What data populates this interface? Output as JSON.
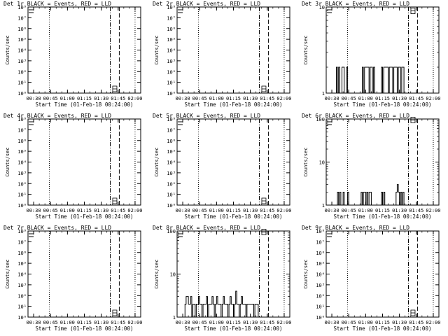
{
  "chart_data": [
    {
      "type": "line",
      "title": "Det 1r BLACK = Events, RED = LLD",
      "xlabel": "Start Time (01-Feb-18 00:24:00)",
      "ylabel": "Counts/sec",
      "yscale": "log",
      "ylim": [
        1,
        100000000
      ],
      "y_ticks": [
        1,
        10,
        100,
        1000,
        10000,
        100000,
        1000000,
        10000000,
        100000000
      ],
      "y_tick_labels": [
        "10⁰",
        "10¹",
        "10²",
        "10³",
        "10⁴",
        "10⁵",
        "10⁶",
        "10⁷",
        "10⁸"
      ],
      "xlim": [
        25,
        125
      ],
      "x_ticks": [
        30,
        45,
        60,
        75,
        90,
        105,
        120
      ],
      "x_tick_labels": [
        "00:30",
        "00:45",
        "01:00",
        "01:15",
        "01:30",
        "01:45",
        "02:00"
      ],
      "dotted_lines": [
        44,
        120
      ],
      "dashdot_lines": [
        98
      ],
      "dashed_lines": [
        106
      ],
      "series": [
        {
          "x": [],
          "y": []
        }
      ],
      "markers": [
        {
          "x": [
            102
          ],
          "y": [
            1.4
          ]
        }
      ]
    },
    {
      "type": "line",
      "title": "Det 2r BLACK = Events, RED = LLD",
      "xlabel": "Start Time (01-Feb-18 00:24:00)",
      "ylabel": "Counts/sec",
      "yscale": "log",
      "ylim": [
        1,
        100000000
      ],
      "y_ticks": [
        1,
        10,
        100,
        1000,
        10000,
        100000,
        1000000,
        10000000,
        100000000
      ],
      "y_tick_labels": [
        "10⁰",
        "10¹",
        "10²",
        "10³",
        "10⁴",
        "10⁵",
        "10⁶",
        "10⁷",
        "10⁸"
      ],
      "xlim": [
        25,
        125
      ],
      "x_ticks": [
        30,
        45,
        60,
        75,
        90,
        105,
        120
      ],
      "x_tick_labels": [
        "00:30",
        "00:45",
        "01:00",
        "01:15",
        "01:30",
        "01:45",
        "02:00"
      ],
      "dotted_lines": [
        44,
        120
      ],
      "dashdot_lines": [
        98
      ],
      "dashed_lines": [
        106
      ],
      "series": [
        {
          "x": [],
          "y": []
        }
      ],
      "markers": [
        {
          "x": [
            102
          ],
          "y": [
            1.4
          ]
        }
      ]
    },
    {
      "type": "line",
      "title": "Det 3r BLACK = Events, RED = LLD",
      "xlabel": "Start Time (01-Feb-18 00:24:00)",
      "ylabel": "Counts/sec",
      "yscale": "log",
      "ylim": [
        1,
        10
      ],
      "y_ticks": [
        1,
        10
      ],
      "y_tick_labels": [
        "1",
        "10"
      ],
      "xlim": [
        25,
        125
      ],
      "x_ticks": [
        30,
        45,
        60,
        75,
        90,
        105,
        120
      ],
      "x_tick_labels": [
        "00:30",
        "00:45",
        "01:00",
        "01:15",
        "01:30",
        "01:45",
        "02:00"
      ],
      "dotted_lines": [
        44,
        120
      ],
      "dashdot_lines": [
        98
      ],
      "dashed_lines": [
        106
      ],
      "series": [
        {
          "x": [
            32,
            33,
            34,
            35,
            36,
            37,
            38,
            39,
            40,
            41,
            42,
            43,
            44,
            45,
            46,
            47,
            48,
            49,
            50,
            51,
            52,
            53,
            54,
            55,
            56,
            57,
            58,
            59,
            60,
            61,
            62,
            63,
            64,
            65,
            66,
            67,
            68,
            69,
            70,
            71,
            72,
            73,
            74,
            75,
            76,
            77,
            78,
            79,
            80,
            81,
            82,
            83,
            84,
            85,
            86,
            87,
            88,
            89,
            90,
            91,
            92,
            93,
            94,
            95,
            96
          ],
          "y": [
            1,
            1,
            2,
            1,
            2,
            1,
            1,
            2,
            2,
            1,
            1,
            2,
            1,
            1,
            1,
            1,
            1,
            1,
            1,
            1,
            1,
            1,
            1,
            1,
            1,
            2,
            1,
            2,
            2,
            2,
            2,
            1,
            2,
            2,
            1,
            2,
            1,
            1,
            1,
            1,
            1,
            1,
            2,
            1,
            2,
            2,
            2,
            2,
            1,
            2,
            2,
            2,
            1,
            2,
            2,
            2,
            1,
            2,
            2,
            1,
            2,
            2,
            1,
            1,
            1
          ]
        }
      ],
      "markers": [
        {
          "x": [
            102
          ],
          "y": [
            9
          ]
        }
      ]
    },
    {
      "type": "line",
      "title": "Det 4r BLACK = Events, RED = LLD",
      "xlabel": "Start Time (01-Feb-18 00:24:00)",
      "ylabel": "Counts/sec",
      "yscale": "log",
      "ylim": [
        1,
        100000000
      ],
      "y_ticks": [
        1,
        10,
        100,
        1000,
        10000,
        100000,
        1000000,
        10000000,
        100000000
      ],
      "y_tick_labels": [
        "10⁰",
        "10¹",
        "10²",
        "10³",
        "10⁴",
        "10⁵",
        "10⁶",
        "10⁷",
        "10⁸"
      ],
      "xlim": [
        25,
        125
      ],
      "x_ticks": [
        30,
        45,
        60,
        75,
        90,
        105,
        120
      ],
      "x_tick_labels": [
        "00:30",
        "00:45",
        "01:00",
        "01:15",
        "01:30",
        "01:45",
        "02:00"
      ],
      "dotted_lines": [
        44,
        120
      ],
      "dashdot_lines": [
        98
      ],
      "dashed_lines": [
        106
      ],
      "series": [
        {
          "x": [],
          "y": []
        }
      ],
      "markers": [
        {
          "x": [
            102
          ],
          "y": [
            1.4
          ]
        }
      ]
    },
    {
      "type": "line",
      "title": "Det 5r BLACK = Events, RED = LLD",
      "xlabel": "Start Time (01-Feb-18 00:24:00)",
      "ylabel": "Counts/sec",
      "yscale": "log",
      "ylim": [
        1,
        100000000
      ],
      "y_ticks": [
        1,
        10,
        100,
        1000,
        10000,
        100000,
        1000000,
        10000000,
        100000000
      ],
      "y_tick_labels": [
        "10⁰",
        "10¹",
        "10²",
        "10³",
        "10⁴",
        "10⁵",
        "10⁶",
        "10⁷",
        "10⁸"
      ],
      "xlim": [
        25,
        125
      ],
      "x_ticks": [
        30,
        45,
        60,
        75,
        90,
        105,
        120
      ],
      "x_tick_labels": [
        "00:30",
        "00:45",
        "01:00",
        "01:15",
        "01:30",
        "01:45",
        "02:00"
      ],
      "dotted_lines": [
        44,
        120
      ],
      "dashdot_lines": [
        98
      ],
      "dashed_lines": [
        106
      ],
      "series": [
        {
          "x": [],
          "y": []
        }
      ],
      "markers": [
        {
          "x": [
            102
          ],
          "y": [
            1.4
          ]
        }
      ]
    },
    {
      "type": "line",
      "title": "Det 6r BLACK = Events, RED = LLD",
      "xlabel": "Start Time (01-Feb-18 00:24:00)",
      "ylabel": "Counts/sec",
      "yscale": "log",
      "ylim": [
        1,
        100
      ],
      "y_ticks": [
        1,
        10,
        100
      ],
      "y_tick_labels": [
        "1",
        "10",
        "100"
      ],
      "xlim": [
        25,
        125
      ],
      "x_ticks": [
        30,
        45,
        60,
        75,
        90,
        105,
        120
      ],
      "x_tick_labels": [
        "00:30",
        "00:45",
        "01:00",
        "01:15",
        "01:30",
        "01:45",
        "02:00"
      ],
      "dotted_lines": [
        44,
        120
      ],
      "dashdot_lines": [
        98
      ],
      "dashed_lines": [
        106
      ],
      "series": [
        {
          "x": [
            34,
            35,
            36,
            37,
            38,
            39,
            40,
            41,
            42,
            43,
            44,
            45,
            46,
            47,
            48,
            49,
            50,
            51,
            52,
            53,
            54,
            55,
            56,
            57,
            58,
            59,
            60,
            61,
            62,
            63,
            64,
            65,
            66,
            67,
            68,
            69,
            70,
            71,
            72,
            73,
            74,
            75,
            76,
            77,
            78,
            79,
            80,
            81,
            82,
            83,
            84,
            85,
            86,
            87,
            88,
            89,
            90,
            91,
            92,
            93,
            94,
            95,
            96
          ],
          "y": [
            1,
            2,
            1,
            2,
            1,
            1,
            2,
            1,
            1,
            1,
            2,
            1,
            1,
            1,
            1,
            1,
            1,
            1,
            1,
            1,
            1,
            1,
            2,
            1,
            2,
            2,
            1,
            2,
            1,
            2,
            2,
            1,
            1,
            1,
            1,
            1,
            1,
            1,
            1,
            1,
            2,
            1,
            2,
            1,
            1,
            1,
            1,
            1,
            1,
            1,
            1,
            1,
            1,
            2,
            3,
            2,
            1,
            2,
            1,
            2,
            1,
            1,
            1
          ]
        }
      ],
      "markers": [
        {
          "x": [
            102
          ],
          "y": [
            95
          ]
        }
      ]
    },
    {
      "type": "line",
      "title": "Det 7r BLACK = Events, RED = LLD",
      "xlabel": "Start Time (01-Feb-18 00:24:00)",
      "ylabel": "Counts/sec",
      "yscale": "log",
      "ylim": [
        1,
        100000000
      ],
      "y_ticks": [
        1,
        10,
        100,
        1000,
        10000,
        100000,
        1000000,
        10000000,
        100000000
      ],
      "y_tick_labels": [
        "10⁰",
        "10¹",
        "10²",
        "10³",
        "10⁴",
        "10⁵",
        "10⁶",
        "10⁷",
        "10⁸"
      ],
      "xlim": [
        25,
        125
      ],
      "x_ticks": [
        30,
        45,
        60,
        75,
        90,
        105,
        120
      ],
      "x_tick_labels": [
        "00:30",
        "00:45",
        "01:00",
        "01:15",
        "01:30",
        "01:45",
        "02:00"
      ],
      "dotted_lines": [
        44,
        120
      ],
      "dashdot_lines": [
        98
      ],
      "dashed_lines": [
        106
      ],
      "series": [
        {
          "x": [],
          "y": []
        }
      ],
      "markers": [
        {
          "x": [
            102
          ],
          "y": [
            1.4
          ]
        }
      ]
    },
    {
      "type": "line",
      "title": "Det 8r BLACK = Events, RED = LLD",
      "xlabel": "Start Time (01-Feb-18 00:24:00)",
      "ylabel": "Counts/sec",
      "yscale": "log",
      "ylim": [
        1,
        100
      ],
      "y_ticks": [
        1,
        10,
        100
      ],
      "y_tick_labels": [
        "1",
        "10",
        "100"
      ],
      "xlim": [
        25,
        125
      ],
      "x_ticks": [
        30,
        45,
        60,
        75,
        90,
        105,
        120
      ],
      "x_tick_labels": [
        "00:30",
        "00:45",
        "01:00",
        "01:15",
        "01:30",
        "01:45",
        "02:00"
      ],
      "dotted_lines": [
        44,
        120
      ],
      "dashdot_lines": [
        98
      ],
      "dashed_lines": [
        106
      ],
      "series": [
        {
          "x": [
            32,
            33,
            34,
            35,
            36,
            37,
            38,
            39,
            40,
            41,
            42,
            43,
            44,
            45,
            46,
            47,
            48,
            49,
            50,
            51,
            52,
            53,
            54,
            55,
            56,
            57,
            58,
            59,
            60,
            61,
            62,
            63,
            64,
            65,
            66,
            67,
            68,
            69,
            70,
            71,
            72,
            73,
            74,
            75,
            76,
            77,
            78,
            79,
            80,
            81,
            82,
            83,
            84,
            85,
            86,
            87,
            88,
            89,
            90,
            91,
            92,
            93,
            94,
            95,
            96
          ],
          "y": [
            2,
            3,
            3,
            2,
            2,
            3,
            1,
            2,
            2,
            1,
            2,
            2,
            3,
            2,
            2,
            1,
            2,
            2,
            2,
            3,
            1,
            2,
            2,
            2,
            3,
            2,
            1,
            2,
            3,
            2,
            2,
            2,
            1,
            2,
            3,
            2,
            2,
            2,
            1,
            2,
            3,
            2,
            2,
            1,
            2,
            4,
            2,
            2,
            1,
            2,
            3,
            2,
            2,
            2,
            1,
            2,
            2,
            2,
            2,
            2,
            2,
            1,
            2,
            2,
            2
          ]
        }
      ],
      "markers": [
        {
          "x": [
            102
          ],
          "y": [
            95
          ]
        }
      ]
    },
    {
      "type": "line",
      "title": "Det 9r BLACK = Events, RED = LLD",
      "xlabel": "Start Time (01-Feb-18 00:24:00)",
      "ylabel": "Counts/sec",
      "yscale": "log",
      "ylim": [
        1,
        100000000
      ],
      "y_ticks": [
        1,
        10,
        100,
        1000,
        10000,
        100000,
        1000000,
        10000000,
        100000000
      ],
      "y_tick_labels": [
        "10⁰",
        "10¹",
        "10²",
        "10³",
        "10⁴",
        "10⁵",
        "10⁶",
        "10⁷",
        "10⁸"
      ],
      "xlim": [
        25,
        125
      ],
      "x_ticks": [
        30,
        45,
        60,
        75,
        90,
        105,
        120
      ],
      "x_tick_labels": [
        "00:30",
        "00:45",
        "01:00",
        "01:15",
        "01:30",
        "01:45",
        "02:00"
      ],
      "dotted_lines": [
        44,
        120
      ],
      "dashdot_lines": [
        98
      ],
      "dashed_lines": [
        106
      ],
      "series": [
        {
          "x": [],
          "y": []
        }
      ],
      "markers": [
        {
          "x": [
            102
          ],
          "y": [
            1.4
          ]
        }
      ]
    }
  ]
}
